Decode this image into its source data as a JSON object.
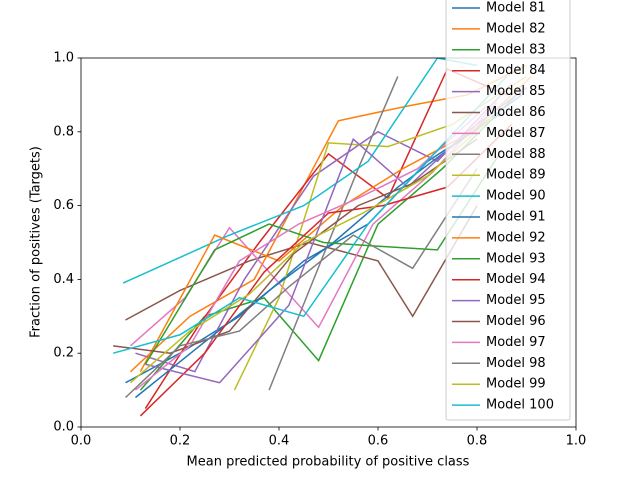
{
  "chart_data": {
    "type": "line",
    "xlabel": "Mean predicted probability of positive class",
    "ylabel": "Fraction of positives (Targets)",
    "xlim": [
      0,
      1
    ],
    "ylim": [
      0,
      1
    ],
    "xticks": [
      {
        "value": 0,
        "label": "0.0"
      },
      0.2,
      0.4,
      0.6,
      0.8,
      {
        "value": 1,
        "label": "1.0"
      }
    ],
    "yticks": [
      {
        "value": 0,
        "label": "0.0"
      },
      0.2,
      0.4,
      0.6,
      0.8,
      {
        "value": 1,
        "label": "1.0"
      }
    ],
    "grid": false,
    "legend": "upper right",
    "series": [
      {
        "name": "Model 81",
        "color": "#1f77b4",
        "x": [
          0.09,
          0.2,
          0.32,
          0.45,
          0.58,
          0.7,
          0.85
        ],
        "values": [
          0.12,
          0.2,
          0.3,
          0.45,
          0.55,
          0.72,
          0.85
        ]
      },
      {
        "name": "Model 82",
        "color": "#ff7f0e",
        "x": [
          0.1,
          0.22,
          0.35,
          0.52,
          0.66,
          0.78,
          0.9
        ],
        "values": [
          0.15,
          0.3,
          0.4,
          0.83,
          0.87,
          0.9,
          0.98
        ]
      },
      {
        "name": "Model 83",
        "color": "#2ca02c",
        "x": [
          0.12,
          0.25,
          0.37,
          0.48,
          0.6,
          0.73,
          0.88
        ],
        "values": [
          0.1,
          0.3,
          0.35,
          0.18,
          0.55,
          0.7,
          0.9
        ]
      },
      {
        "name": "Model 84",
        "color": "#d62728",
        "x": [
          0.13,
          0.24,
          0.36,
          0.5,
          0.62,
          0.74,
          0.86
        ],
        "values": [
          0.05,
          0.28,
          0.5,
          0.74,
          0.62,
          0.97,
          0.9
        ]
      },
      {
        "name": "Model 85",
        "color": "#9467bd",
        "x": [
          0.11,
          0.23,
          0.33,
          0.47,
          0.6,
          0.72,
          0.87
        ],
        "values": [
          0.2,
          0.15,
          0.4,
          0.68,
          0.8,
          0.72,
          0.93
        ]
      },
      {
        "name": "Model 86",
        "color": "#8c564b",
        "x": [
          0.09,
          0.2,
          0.34,
          0.46,
          0.6,
          0.67,
          0.8
        ],
        "values": [
          0.29,
          0.37,
          0.45,
          0.5,
          0.45,
          0.3,
          0.6
        ]
      },
      {
        "name": "Model 87",
        "color": "#e377c2",
        "x": [
          0.1,
          0.21,
          0.3,
          0.48,
          0.59,
          0.71,
          0.84
        ],
        "values": [
          0.22,
          0.35,
          0.54,
          0.27,
          0.55,
          0.69,
          0.88
        ]
      },
      {
        "name": "Model 88",
        "color": "#7f7f7f",
        "x": [
          0.38,
          0.47,
          0.56,
          0.64
        ],
        "values": [
          0.1,
          0.4,
          0.7,
          0.95
        ]
      },
      {
        "name": "Model 89",
        "color": "#bcbd22",
        "x": [
          0.31,
          0.4,
          0.5,
          0.62,
          0.75,
          0.9
        ],
        "values": [
          0.1,
          0.35,
          0.77,
          0.76,
          0.82,
          0.95
        ]
      },
      {
        "name": "Model 90",
        "color": "#17becf",
        "x": [
          0.085,
          0.3,
          0.45,
          0.58,
          0.72,
          0.8
        ],
        "values": [
          0.39,
          0.52,
          0.6,
          0.72,
          1.0,
          0.98
        ]
      },
      {
        "name": "Model 91",
        "color": "#1f77b4",
        "x": [
          0.11,
          0.24,
          0.39,
          0.51,
          0.64,
          0.77,
          0.89
        ],
        "values": [
          0.08,
          0.22,
          0.38,
          0.5,
          0.65,
          0.78,
          0.9
        ]
      },
      {
        "name": "Model 92",
        "color": "#ff7f0e",
        "x": [
          0.12,
          0.27,
          0.4,
          0.53,
          0.65,
          0.79,
          0.91
        ],
        "values": [
          0.15,
          0.52,
          0.45,
          0.6,
          0.7,
          0.8,
          0.95
        ]
      },
      {
        "name": "Model 93",
        "color": "#2ca02c",
        "x": [
          0.13,
          0.27,
          0.38,
          0.49,
          0.6,
          0.72,
          0.85
        ],
        "values": [
          0.17,
          0.48,
          0.55,
          0.5,
          0.49,
          0.48,
          0.75
        ]
      },
      {
        "name": "Model 94",
        "color": "#d62728",
        "x": [
          0.12,
          0.25,
          0.37,
          0.5,
          0.61,
          0.74,
          0.87
        ],
        "values": [
          0.03,
          0.2,
          0.42,
          0.58,
          0.6,
          0.65,
          0.82
        ]
      },
      {
        "name": "Model 95",
        "color": "#9467bd",
        "x": [
          0.13,
          0.28,
          0.42,
          0.55,
          0.66,
          0.78,
          0.9
        ],
        "values": [
          0.17,
          0.12,
          0.33,
          0.78,
          0.65,
          0.8,
          0.92
        ]
      },
      {
        "name": "Model 96",
        "color": "#8c564b",
        "x": [
          0.065,
          0.18,
          0.3,
          0.43,
          0.56,
          0.67,
          0.8
        ],
        "values": [
          0.22,
          0.2,
          0.26,
          0.47,
          0.6,
          0.66,
          0.78
        ]
      },
      {
        "name": "Model 97",
        "color": "#e377c2",
        "x": [
          0.11,
          0.22,
          0.32,
          0.44,
          0.56,
          0.68,
          0.82
        ],
        "values": [
          0.1,
          0.22,
          0.45,
          0.55,
          0.62,
          0.7,
          0.87
        ]
      },
      {
        "name": "Model 98",
        "color": "#7f7f7f",
        "x": [
          0.09,
          0.2,
          0.32,
          0.42,
          0.55,
          0.67,
          0.8
        ],
        "values": [
          0.08,
          0.22,
          0.26,
          0.38,
          0.52,
          0.43,
          0.7
        ]
      },
      {
        "name": "Model 99",
        "color": "#bcbd22",
        "x": [
          0.1,
          0.22,
          0.34,
          0.45,
          0.57,
          0.7,
          0.83
        ],
        "values": [
          0.12,
          0.26,
          0.36,
          0.5,
          0.58,
          0.68,
          0.84
        ]
      },
      {
        "name": "Model 100",
        "color": "#17becf",
        "x": [
          0.065,
          0.2,
          0.32,
          0.45,
          0.58,
          0.72,
          0.86
        ],
        "values": [
          0.2,
          0.25,
          0.35,
          0.3,
          0.55,
          0.75,
          0.95
        ]
      }
    ]
  }
}
